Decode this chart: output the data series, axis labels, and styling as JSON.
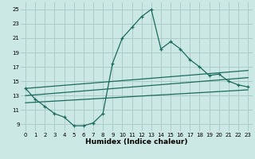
{
  "xlabel": "Humidex (Indice chaleur)",
  "bg_color": "#cce8e4",
  "grid_color": "#aaccca",
  "line_color": "#1a6b5e",
  "xlim": [
    -0.5,
    23.5
  ],
  "ylim": [
    8,
    26
  ],
  "yticks": [
    9,
    11,
    13,
    15,
    17,
    19,
    21,
    23,
    25
  ],
  "xticks": [
    0,
    1,
    2,
    3,
    4,
    5,
    6,
    7,
    8,
    9,
    10,
    11,
    12,
    13,
    14,
    15,
    16,
    17,
    18,
    19,
    20,
    21,
    22,
    23
  ],
  "series1_x": [
    0,
    1,
    2,
    3,
    4,
    5,
    6,
    7,
    8,
    9,
    10,
    11,
    12,
    13,
    14,
    15,
    16,
    17,
    18,
    19,
    20,
    21,
    22,
    23
  ],
  "series1_y": [
    14.0,
    12.5,
    11.5,
    10.5,
    10.0,
    8.8,
    8.8,
    9.2,
    10.5,
    17.5,
    21.0,
    22.5,
    24.0,
    25.0,
    19.5,
    20.5,
    19.5,
    18.0,
    17.0,
    15.8,
    16.0,
    15.0,
    14.5,
    14.2
  ],
  "series2_x": [
    0,
    23
  ],
  "series2_y": [
    14.0,
    16.5
  ],
  "series3_x": [
    0,
    23
  ],
  "series3_y": [
    13.0,
    15.5
  ],
  "series4_x": [
    0,
    23
  ],
  "series4_y": [
    12.0,
    13.8
  ]
}
